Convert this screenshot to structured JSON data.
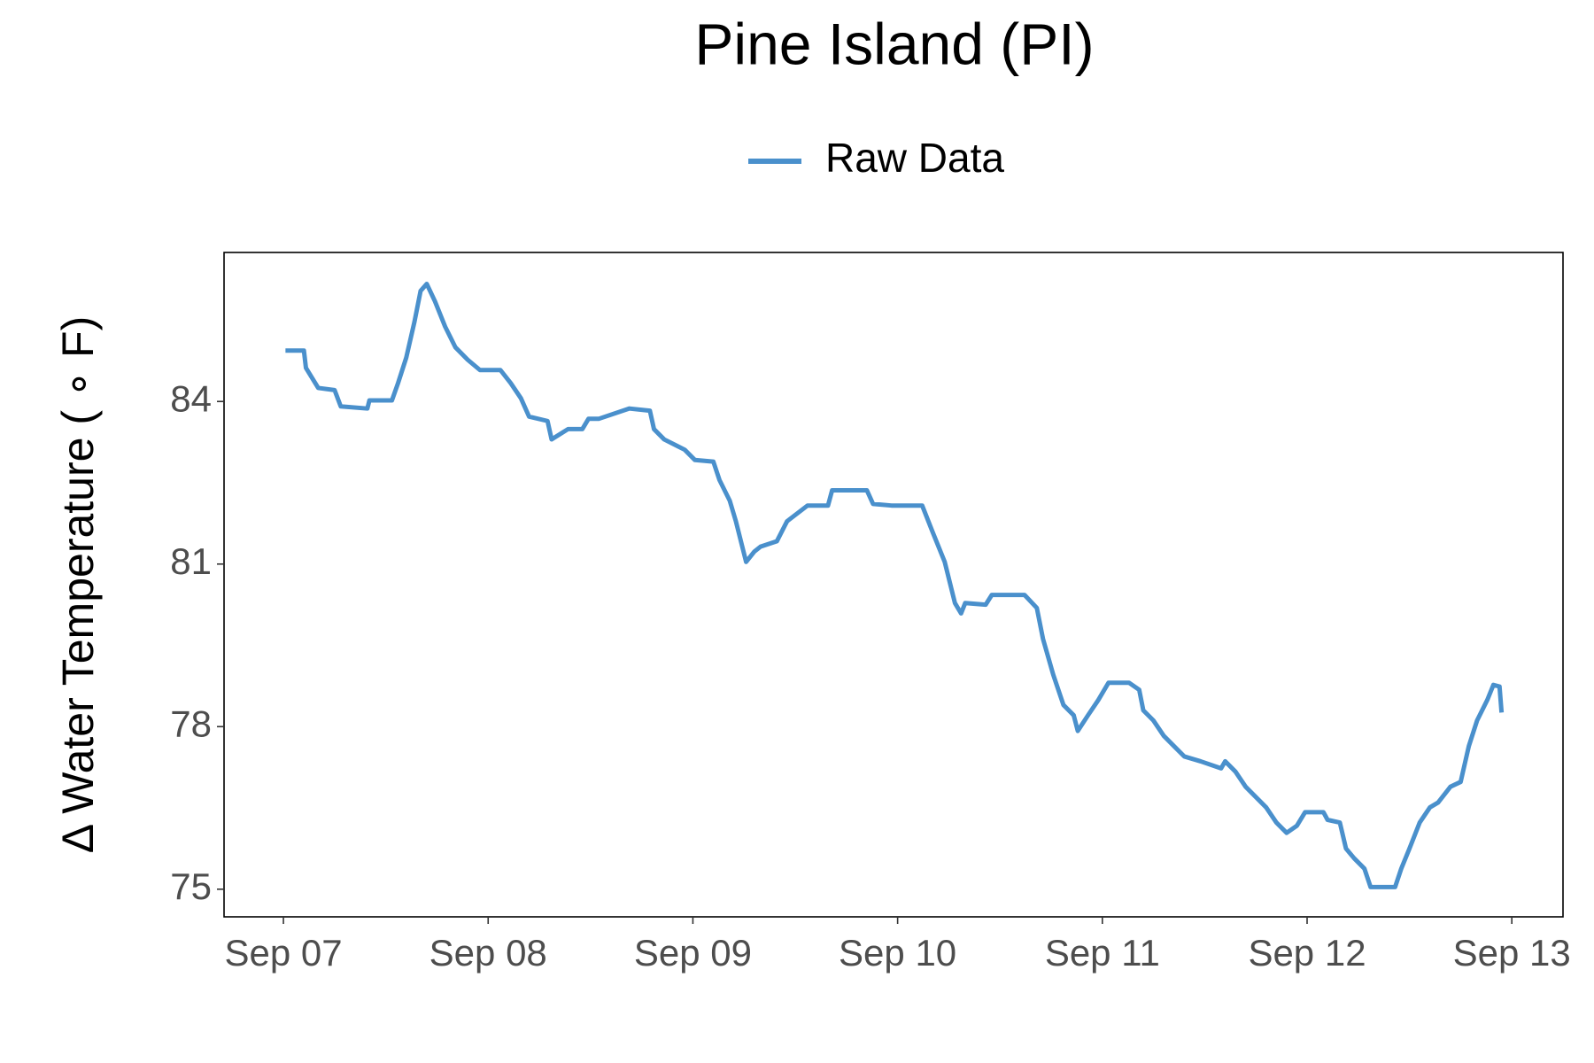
{
  "chart_data": {
    "type": "line",
    "title": "Pine Island (PI)",
    "ylabel": "Δ Water Temperature ( ∘ F)",
    "legend": "top",
    "grid": false,
    "xlim": [
      -0.29,
      6.25
    ],
    "ylim": [
      74.49,
      86.75
    ],
    "xticks": [
      {
        "value": 0,
        "label": "Sep 07"
      },
      {
        "value": 1,
        "label": "Sep 08"
      },
      {
        "value": 2,
        "label": "Sep 09"
      },
      {
        "value": 3,
        "label": "Sep 10"
      },
      {
        "value": 4,
        "label": "Sep 11"
      },
      {
        "value": 5,
        "label": "Sep 12"
      },
      {
        "value": 6,
        "label": "Sep 13"
      }
    ],
    "yticks": [
      75,
      78,
      81,
      84
    ],
    "x": [
      0.01,
      0.1,
      0.11,
      0.17,
      0.25,
      0.28,
      0.41,
      0.42,
      0.53,
      0.56,
      0.6,
      0.64,
      0.67,
      0.7,
      0.74,
      0.79,
      0.84,
      0.9,
      0.96,
      1.06,
      1.11,
      1.16,
      1.2,
      1.29,
      1.31,
      1.39,
      1.46,
      1.49,
      1.54,
      1.69,
      1.79,
      1.81,
      1.86,
      1.96,
      2.01,
      2.1,
      2.13,
      2.18,
      2.21,
      2.26,
      2.3,
      2.33,
      2.41,
      2.46,
      2.56,
      2.66,
      2.68,
      2.85,
      2.88,
      2.97,
      3.12,
      3.17,
      3.23,
      3.28,
      3.31,
      3.33,
      3.43,
      3.46,
      3.62,
      3.68,
      3.71,
      3.76,
      3.81,
      3.86,
      3.88,
      3.93,
      3.98,
      4.03,
      4.13,
      4.18,
      4.2,
      4.25,
      4.3,
      4.35,
      4.4,
      4.48,
      4.58,
      4.6,
      4.65,
      4.7,
      4.8,
      4.85,
      4.9,
      4.95,
      4.99,
      5.08,
      5.1,
      5.16,
      5.19,
      5.23,
      5.28,
      5.31,
      5.43,
      5.46,
      5.5,
      5.55,
      5.6,
      5.64,
      5.7,
      5.75,
      5.79,
      5.83,
      5.88,
      5.91,
      5.94,
      5.95
    ],
    "series": [
      {
        "name": "Raw Data",
        "color": "#4A90CC",
        "values": [
          84.94,
          84.94,
          84.62,
          84.25,
          84.21,
          83.91,
          83.87,
          84.02,
          84.02,
          84.34,
          84.81,
          85.47,
          86.04,
          86.17,
          85.85,
          85.38,
          85.0,
          84.77,
          84.58,
          84.58,
          84.34,
          84.06,
          83.72,
          83.64,
          83.3,
          83.49,
          83.49,
          83.68,
          83.68,
          83.87,
          83.83,
          83.49,
          83.3,
          83.11,
          82.92,
          82.89,
          82.55,
          82.17,
          81.79,
          81.04,
          81.23,
          81.32,
          81.42,
          81.79,
          82.08,
          82.08,
          82.36,
          82.36,
          82.11,
          82.08,
          82.08,
          81.6,
          81.04,
          80.28,
          80.09,
          80.28,
          80.25,
          80.43,
          80.43,
          80.19,
          79.62,
          78.96,
          78.4,
          78.21,
          77.92,
          78.21,
          78.49,
          78.81,
          78.81,
          78.68,
          78.3,
          78.11,
          77.83,
          77.64,
          77.45,
          77.36,
          77.23,
          77.36,
          77.17,
          76.89,
          76.51,
          76.23,
          76.04,
          76.17,
          76.42,
          76.42,
          76.28,
          76.23,
          75.75,
          75.57,
          75.38,
          75.04,
          75.04,
          75.38,
          75.75,
          76.23,
          76.51,
          76.6,
          76.89,
          76.98,
          77.64,
          78.11,
          78.49,
          78.77,
          78.74,
          78.26
        ]
      }
    ]
  }
}
